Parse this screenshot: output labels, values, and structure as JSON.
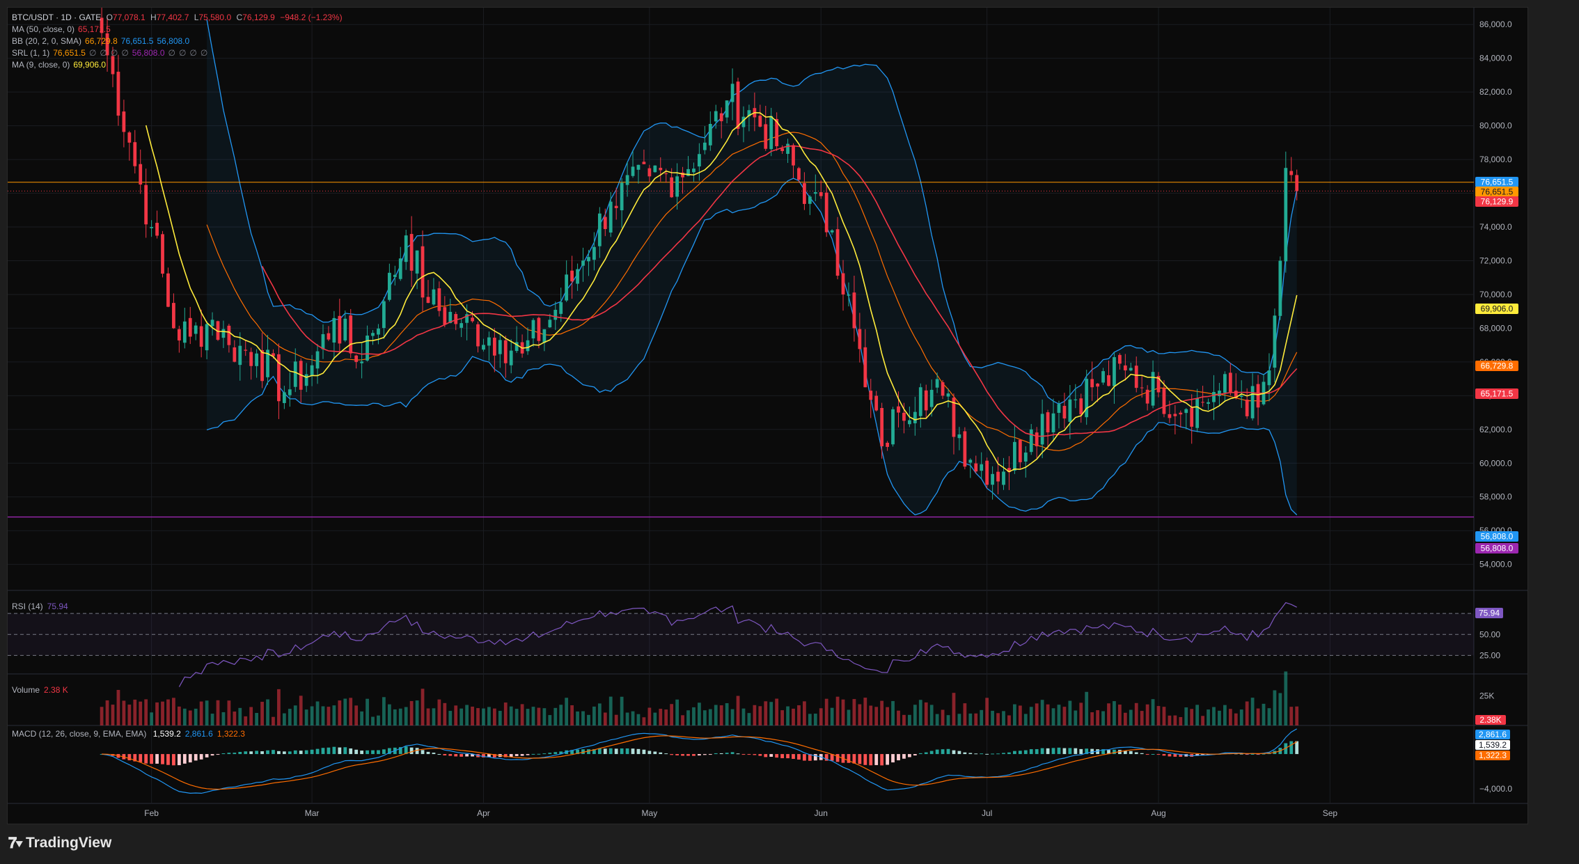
{
  "header": {
    "symbol": "BTC/USDT · 1D · GATE",
    "o_label": "O",
    "o": "77,078.1",
    "h_label": "H",
    "h": "77,402.7",
    "l_label": "L",
    "l": "75,580.0",
    "c_label": "C",
    "c": "76,129.9",
    "change": "−948.2 (−1.23%)"
  },
  "indicators": [
    {
      "label": "MA (50, close, 0)",
      "values": [
        "65,171.5"
      ],
      "colors": [
        "#f23645"
      ]
    },
    {
      "label": "BB (20, 2, 0, SMA)",
      "values": [
        "66,729.8",
        "76,651.5",
        "56,808.0"
      ],
      "colors": [
        "#ff9800",
        "#2196f3",
        "#2196f3"
      ]
    },
    {
      "label": "SRL (1, 1)",
      "values": [
        "76,651.5",
        "∅",
        "∅",
        "∅",
        "∅",
        "56,808.0",
        "∅",
        "∅",
        "∅",
        "∅"
      ],
      "colors": [
        "#ff9800",
        "#787b86",
        "#787b86",
        "#787b86",
        "#787b86",
        "#9c27b0",
        "#787b86",
        "#787b86",
        "#787b86",
        "#787b86"
      ]
    },
    {
      "label": "MA (9, close, 0)",
      "values": [
        "69,906.0"
      ],
      "colors": [
        "#ffeb3b"
      ]
    }
  ],
  "rsi": {
    "label": "RSI (14)",
    "value": "75.94"
  },
  "volume": {
    "label": "Volume",
    "value": "2.38 K"
  },
  "macd": {
    "label": "MACD (12, 26, close, 9, EMA, EMA)",
    "values": [
      "1,539.2",
      "2,861.6",
      "1,322.3"
    ],
    "colors": [
      "#ffffff",
      "#2196f3",
      "#ff6d00"
    ]
  },
  "brand": {
    "name": "TradingView",
    "icon": "tradingview-logo-icon"
  },
  "colors": {
    "up": "#22ab94",
    "down": "#f23645",
    "ma50": "#f23645",
    "ma9": "#ffeb3b",
    "bb_basis": "#ff6d00",
    "bb_band": "#2196f3",
    "support": "#9c27b0",
    "resistance": "#ff9800",
    "rsi": "#7e57c2"
  },
  "chart_data": {
    "type": "candlestick",
    "title": "BTC/USDT · 1D · GATE",
    "y_ticks": [
      "86,000.0",
      "84,000.0",
      "82,000.0",
      "80,000.0",
      "78,000.0",
      "76,000.0",
      "74,000.0",
      "72,000.0",
      "70,000.0",
      "68,000.0",
      "66,000.0",
      "64,000.0",
      "62,000.0",
      "60,000.0",
      "58,000.0",
      "56,000.0",
      "54,000.0"
    ],
    "x_ticks": [
      "Feb",
      "Mar",
      "Apr",
      "May",
      "Jun",
      "Jul",
      "Aug",
      "Sep"
    ],
    "ylim": [
      52500,
      87000
    ],
    "price_badges": [
      {
        "text": "76,651.5",
        "value": 76651.5,
        "color": "#2196f3"
      },
      {
        "text": "76,651.5",
        "value": 76651.5,
        "color": "#ff9800"
      },
      {
        "text": "76,129.9",
        "value": 76129.9,
        "color": "#f23645"
      },
      {
        "text": "69,906.0",
        "value": 69906.0,
        "color": "#ffeb3b"
      },
      {
        "text": "66,729.8",
        "value": 66729.8,
        "color": "#ff6d00"
      },
      {
        "text": "65,171.5",
        "value": 65171.5,
        "color": "#f23645"
      },
      {
        "text": "56,808.0",
        "value": 56808.0,
        "color": "#2196f3"
      },
      {
        "text": "56,808.0",
        "value": 56808.0,
        "color": "#9c27b0"
      }
    ],
    "support_level": 56808.0,
    "resistance_level": 76651.5,
    "close_anchors": [
      [
        "2024-01-23",
        85500
      ],
      [
        "2024-01-28",
        79000
      ],
      [
        "2024-02-01",
        74000
      ],
      [
        "2024-02-05",
        68000
      ],
      [
        "2024-02-08",
        67500
      ],
      [
        "2024-02-12",
        68500
      ],
      [
        "2024-02-15",
        67000
      ],
      [
        "2024-02-20",
        66500
      ],
      [
        "2024-02-25",
        64200
      ],
      [
        "2024-03-01",
        65800
      ],
      [
        "2024-03-05",
        68600
      ],
      [
        "2024-03-09",
        66000
      ],
      [
        "2024-03-14",
        69600
      ],
      [
        "2024-03-18",
        73500
      ],
      [
        "2024-03-22",
        69500
      ],
      [
        "2024-03-28",
        68300
      ],
      [
        "2024-04-04",
        67300
      ],
      [
        "2024-04-08",
        66500
      ],
      [
        "2024-04-13",
        68500
      ],
      [
        "2024-04-18",
        71500
      ],
      [
        "2024-04-24",
        75500
      ],
      [
        "2024-05-01",
        77000
      ],
      [
        "2024-05-06",
        77000
      ],
      [
        "2024-05-11",
        79000
      ],
      [
        "2024-05-15",
        81500
      ],
      [
        "2024-05-20",
        80500
      ],
      [
        "2024-05-25",
        78500
      ],
      [
        "2024-05-30",
        75800
      ],
      [
        "2024-06-03",
        73800
      ],
      [
        "2024-06-07",
        68000
      ],
      [
        "2024-06-09",
        64500
      ],
      [
        "2024-06-12",
        61000
      ],
      [
        "2024-06-15",
        63000
      ],
      [
        "2024-06-19",
        64500
      ],
      [
        "2024-06-23",
        64000
      ],
      [
        "2024-06-28",
        60200
      ],
      [
        "2024-07-04",
        59500
      ],
      [
        "2024-07-09",
        62000
      ],
      [
        "2024-07-14",
        63500
      ],
      [
        "2024-07-20",
        64500
      ],
      [
        "2024-07-26",
        65500
      ],
      [
        "2024-08-01",
        64200
      ],
      [
        "2024-08-06",
        63200
      ],
      [
        "2024-08-12",
        64300
      ],
      [
        "2024-08-16",
        64000
      ],
      [
        "2024-08-19",
        63300
      ],
      [
        "2024-08-21",
        65500
      ],
      [
        "2024-08-23",
        72000
      ],
      [
        "2024-08-24",
        77500
      ],
      [
        "2024-08-25",
        77078
      ],
      [
        "2024-08-26",
        76130
      ]
    ],
    "x_range": [
      "2024-01-06",
      "2024-09-27"
    ],
    "rsi_levels": [
      70,
      50,
      30
    ],
    "rsi_ylim": [
      15,
      88
    ],
    "volume_tick": "25K",
    "macd_tick": "−4,000.0",
    "macd_ylim": [
      -5500,
      2800
    ]
  }
}
